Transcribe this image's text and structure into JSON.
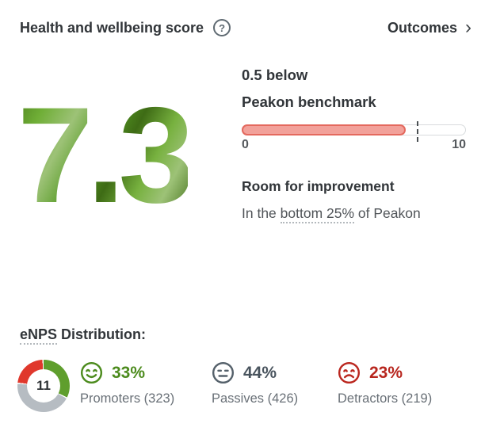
{
  "header": {
    "title": "Health and wellbeing score",
    "help_glyph": "?",
    "outcomes_label": "Outcomes",
    "outcomes_chevron": "›"
  },
  "score": {
    "value": "7.3",
    "benchmark_delta_line": "0.5 below",
    "benchmark_name_line": "Peakon benchmark",
    "scale_min_label": "0",
    "scale_max_label": "10",
    "assessment_title": "Room for improvement",
    "assessment_prefix": "In the ",
    "assessment_highlight": "bottom 25%",
    "assessment_suffix": " of Peakon"
  },
  "enps": {
    "title_highlight": "eNPS",
    "title_rest": " Distribution:",
    "gauge_value": "11",
    "groups": [
      {
        "value_label": "33%",
        "label": "Promoters (323)",
        "icon": "happy-face-icon",
        "color": "#4c8b1d"
      },
      {
        "value_label": "44%",
        "label": "Passives (426)",
        "icon": "neutral-face-icon",
        "color": "#49545e"
      },
      {
        "value_label": "23%",
        "label": "Detractors (219)",
        "icon": "sad-face-icon",
        "color": "#b8261e"
      }
    ]
  },
  "chart_data": [
    {
      "type": "bar",
      "title": "Health and wellbeing score vs Peakon benchmark",
      "score": 7.3,
      "benchmark": 7.8,
      "delta_text": "0.5 below Peakon benchmark",
      "axis_range": [
        0,
        10
      ],
      "fill_percent": 73,
      "marker_percent": 78,
      "fill_color": "#f2a19a",
      "fill_border_color": "#e4695e"
    },
    {
      "type": "pie",
      "title": "eNPS Distribution",
      "center_value": 11,
      "segments": [
        {
          "name": "Promoters",
          "percent": 33,
          "count": 323,
          "color": "#5f9e2d"
        },
        {
          "name": "Passives",
          "percent": 44,
          "count": 426,
          "color": "#b6bcc2"
        },
        {
          "name": "Detractors",
          "percent": 23,
          "count": 219,
          "color": "#e0382c"
        }
      ]
    }
  ]
}
